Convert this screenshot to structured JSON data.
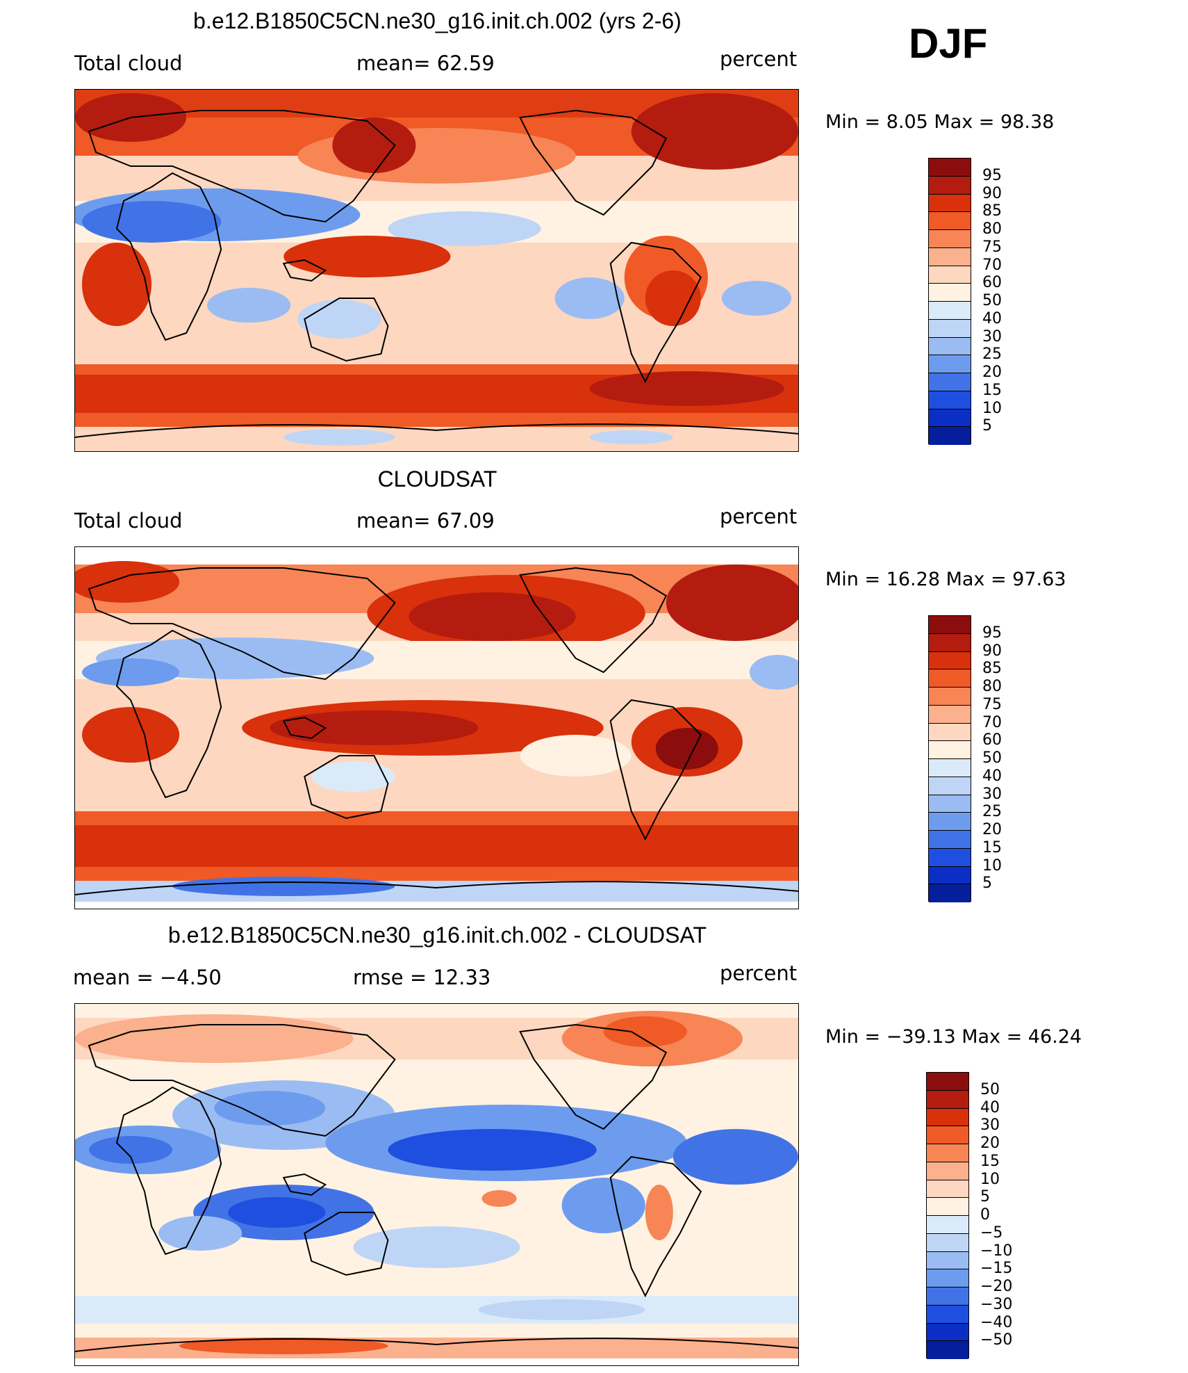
{
  "season": "DJF",
  "palette": [
    "#8c0d0d",
    "#b41c0f",
    "#d8310c",
    "#ef5a26",
    "#f78556",
    "#fbb08e",
    "#fdd7c0",
    "#fff2e2",
    "#dbeaf9",
    "#bfd5f6",
    "#9bbcf3",
    "#6d9cef",
    "#4173e6",
    "#1e4fe0",
    "#0b2fc4",
    "#041e9c"
  ],
  "panels": [
    {
      "title": "b.e12.B1850C5CN.ne30_g16.init.ch.002 (yrs 2-6)",
      "left_label": "Total cloud",
      "center_label": "mean=   62.59",
      "right_label": "percent",
      "minmax": "Min  =     8.05  Max  =    98.38",
      "legend_labels": [
        "95",
        "90",
        "85",
        "80",
        "75",
        "70",
        "60",
        "50",
        "40",
        "30",
        "25",
        "20",
        "15",
        "10",
        "5"
      ]
    },
    {
      "title": "CLOUDSAT",
      "left_label": "Total cloud",
      "center_label": "mean=   67.09",
      "right_label": "percent",
      "minmax": "Min  =    16.28  Max  =    97.63",
      "legend_labels": [
        "95",
        "90",
        "85",
        "80",
        "75",
        "70",
        "60",
        "50",
        "40",
        "30",
        "25",
        "20",
        "15",
        "10",
        "5"
      ]
    },
    {
      "title": "b.e12.B1850C5CN.ne30_g16.init.ch.002 - CLOUDSAT",
      "left_label": "mean  =    −4.50",
      "center_label": "rmse  =    12.33",
      "right_label": "percent",
      "minmax": "Min  = −39.13  Max  =    46.24",
      "legend_labels": [
        "50",
        "40",
        "30",
        "20",
        "15",
        "10",
        "5",
        "0",
        "−5",
        "−10",
        "−15",
        "−20",
        "−30",
        "−40",
        "−50"
      ]
    }
  ],
  "chart_data": [
    {
      "type": "heatmap",
      "title": "b.e12.B1850C5CN.ne30_g16.init.ch.002 (yrs 2-6)",
      "variable": "Total cloud",
      "units": "percent",
      "mean": 62.59,
      "min": 8.05,
      "max": 98.38,
      "contour_levels": [
        5,
        10,
        15,
        20,
        25,
        30,
        40,
        50,
        60,
        70,
        75,
        80,
        85,
        90,
        95
      ]
    },
    {
      "type": "heatmap",
      "title": "CLOUDSAT",
      "variable": "Total cloud",
      "units": "percent",
      "mean": 67.09,
      "min": 16.28,
      "max": 97.63,
      "contour_levels": [
        5,
        10,
        15,
        20,
        25,
        30,
        40,
        50,
        60,
        70,
        75,
        80,
        85,
        90,
        95
      ]
    },
    {
      "type": "heatmap",
      "title": "b.e12.B1850C5CN.ne30_g16.init.ch.002 - CLOUDSAT",
      "variable": "Total cloud difference",
      "units": "percent",
      "mean": -4.5,
      "rmse": 12.33,
      "min": -39.13,
      "max": 46.24,
      "contour_levels": [
        -50,
        -40,
        -30,
        -20,
        -15,
        -10,
        -5,
        0,
        5,
        10,
        15,
        20,
        30,
        40,
        50
      ]
    }
  ]
}
